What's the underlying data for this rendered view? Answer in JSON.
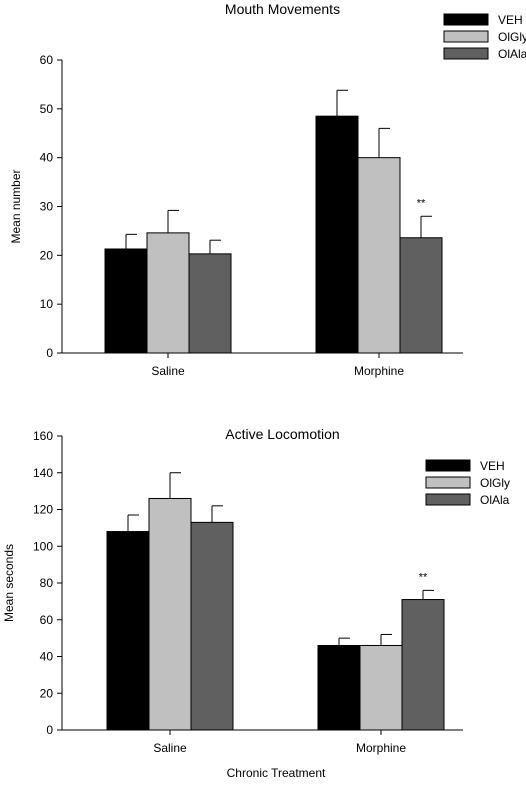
{
  "chart_data": [
    {
      "type": "bar",
      "title": "Mouth Movements",
      "xlabel": "",
      "ylabel": "Mean number",
      "ylim": [
        0,
        60
      ],
      "yticks": [
        0,
        10,
        20,
        30,
        40,
        50,
        60
      ],
      "categories": [
        "Saline",
        "Morphine"
      ],
      "legend_position": "top-right",
      "series": [
        {
          "name": "VEH",
          "color": "#000000",
          "values": [
            21.3,
            48.5
          ],
          "errors": [
            3.0,
            5.3
          ]
        },
        {
          "name": "OlGly",
          "color": "#c0c0c0",
          "values": [
            24.6,
            40.0
          ],
          "errors": [
            4.6,
            6.0
          ]
        },
        {
          "name": "OlAla",
          "color": "#606060",
          "values": [
            20.3,
            23.6
          ],
          "errors": [
            2.8,
            4.4
          ]
        }
      ],
      "annotations": [
        {
          "category": 1,
          "series": 2,
          "text": "**"
        }
      ]
    },
    {
      "type": "bar",
      "title": "Active Locomotion",
      "xlabel": "Chronic Treatment",
      "ylabel": "Mean seconds",
      "ylim": [
        0,
        160
      ],
      "yticks": [
        0,
        20,
        40,
        60,
        80,
        100,
        120,
        140,
        160
      ],
      "categories": [
        "Saline",
        "Morphine"
      ],
      "legend_position": "top-right",
      "series": [
        {
          "name": "VEH",
          "color": "#000000",
          "values": [
            108,
            46
          ],
          "errors": [
            9,
            4
          ]
        },
        {
          "name": "OlGly",
          "color": "#c0c0c0",
          "values": [
            126,
            46
          ],
          "errors": [
            14,
            6
          ]
        },
        {
          "name": "OlAla",
          "color": "#606060",
          "values": [
            113,
            71
          ],
          "errors": [
            9,
            5
          ]
        }
      ],
      "annotations": [
        {
          "category": 1,
          "series": 2,
          "text": "**"
        }
      ]
    }
  ]
}
